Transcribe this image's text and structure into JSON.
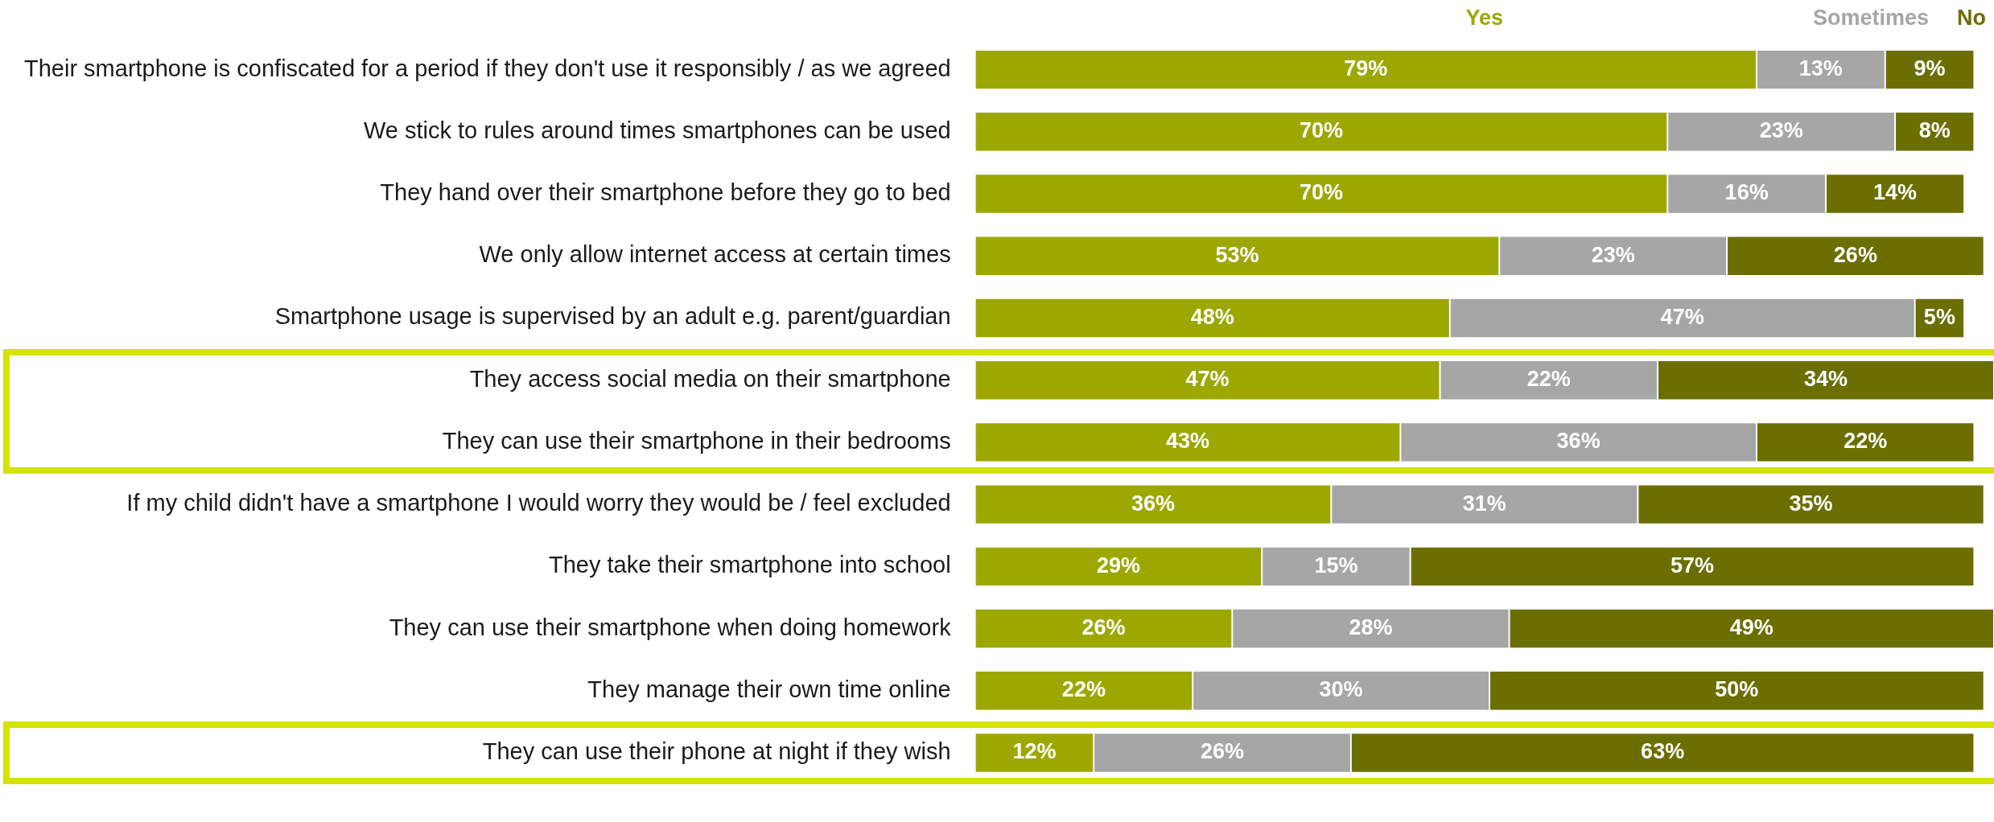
{
  "chart_data": {
    "type": "bar",
    "orientation": "horizontal",
    "stacked": true,
    "legend": "top",
    "grid": false,
    "categories": [
      "Their smartphone is confiscated for a period if they don't use it responsibly / as we agreed",
      "We stick to rules around times smartphones can be used",
      "They hand over their smartphone before they go to bed",
      "We only allow internet access at certain times",
      "Smartphone usage is supervised by an adult e.g. parent/guardian",
      "They access social media on their smartphone",
      "They can use their smartphone in their bedrooms",
      "If my child didn't have a smartphone I would worry they would be / feel excluded",
      "They take their smartphone into school",
      "They can use their smartphone when doing homework",
      "They manage their own time online",
      "They can use their phone at night if they wish"
    ],
    "xlim": [
      0,
      103
    ],
    "series": [
      {
        "name": "Yes",
        "color": "#9ca800",
        "values": [
          79,
          70,
          70,
          53,
          48,
          47,
          43,
          36,
          29,
          26,
          22,
          12
        ],
        "value_labels": [
          "79%",
          "70%",
          "70%",
          "53%",
          "48%",
          "47%",
          "43%",
          "36%",
          "29%",
          "26%",
          "22%",
          "12%"
        ]
      },
      {
        "name": "Sometimes",
        "color": "#a6a6a6",
        "values": [
          13,
          23,
          16,
          23,
          47,
          22,
          36,
          31,
          15,
          28,
          30,
          26
        ],
        "value_labels": [
          "13%",
          "23%",
          "16%",
          "23%",
          "47%",
          "22%",
          "36%",
          "31%",
          "15%",
          "28%",
          "30%",
          "26%"
        ]
      },
      {
        "name": "No",
        "color": "#6b6f00",
        "values": [
          9,
          8,
          14,
          26,
          5,
          34,
          22,
          35,
          57,
          49,
          50,
          63
        ],
        "value_labels": [
          "9%",
          "8%",
          "14%",
          "26%",
          "5%",
          "34%",
          "22%",
          "35%",
          "57%",
          "49%",
          "50%",
          "63%"
        ]
      }
    ]
  }
}
